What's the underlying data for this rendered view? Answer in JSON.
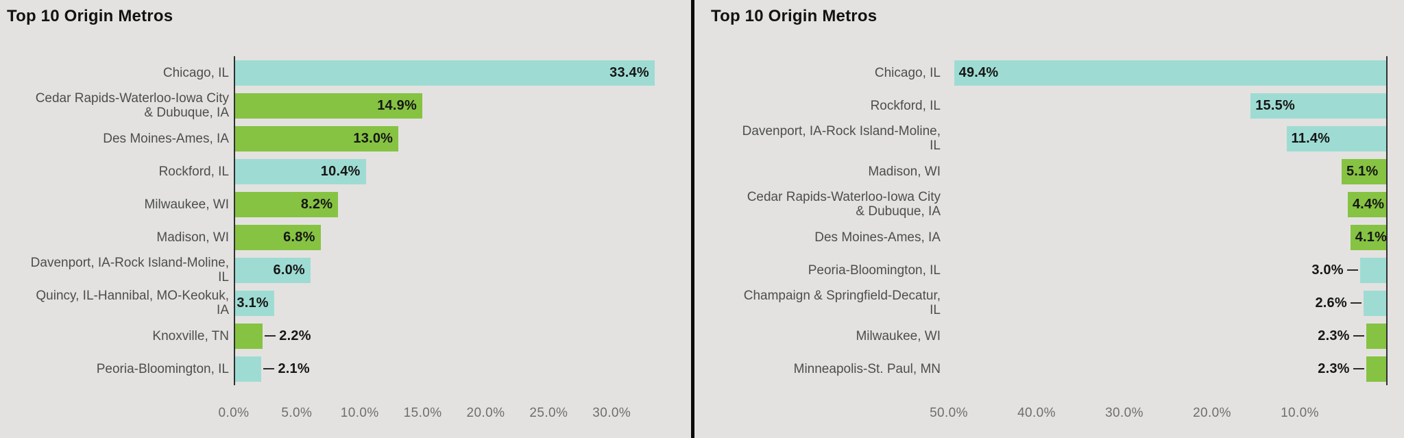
{
  "page": {
    "background": "#e3e2e0"
  },
  "colors": {
    "teal": "#9edcd3",
    "green": "#86c342",
    "divider": "#0b0b0b",
    "axis_line": "#2f2f2f",
    "category_text": "#4d4d4d",
    "tick_text": "#6e6e6e",
    "value_text": "#161616",
    "title_text": "#121212",
    "background": "#e3e2e0"
  },
  "chart_data": [
    {
      "type": "bar",
      "orientation": "horizontal",
      "mirrored": false,
      "title": "Top 10 Origin Metros",
      "categories": [
        "Chicago, IL",
        "Cedar Rapids-Waterloo-Iowa City\n& Dubuque, IA",
        "Des Moines-Ames, IA",
        "Rockford, IL",
        "Milwaukee, WI",
        "Madison, WI",
        "Davenport, IA-Rock Island-Moline,\nIL",
        "Quincy, IL-Hannibal, MO-Keokuk,\nIA",
        "Knoxville, TN",
        "Peoria-Bloomington, IL"
      ],
      "values": [
        33.4,
        14.9,
        13.0,
        10.4,
        8.2,
        6.8,
        6.0,
        3.1,
        2.2,
        2.1
      ],
      "value_labels": [
        "33.4%",
        "14.9%",
        "13.0%",
        "10.4%",
        "8.2%",
        "6.8%",
        "6.0%",
        "3.1%",
        "2.2%",
        "2.1%"
      ],
      "bar_colors": [
        "teal",
        "green",
        "green",
        "teal",
        "green",
        "green",
        "teal",
        "teal",
        "green",
        "teal"
      ],
      "label_inside": [
        true,
        true,
        true,
        true,
        true,
        true,
        true,
        true,
        false,
        false
      ],
      "axis_max": 36.3,
      "x_tick_values": [
        0,
        5,
        10,
        15,
        20,
        25,
        30
      ],
      "x_ticks": [
        "0.0%",
        "5.0%",
        "10.0%",
        "15.0%",
        "20.0%",
        "25.0%",
        "30.0%"
      ],
      "xlabel": "",
      "ylabel": "",
      "grid": false,
      "legend": "none",
      "value_axis_side": "left"
    },
    {
      "type": "bar",
      "orientation": "horizontal",
      "mirrored": true,
      "title": "Top 10 Origin Metros",
      "categories": [
        "Chicago, IL",
        "Rockford, IL",
        "Davenport, IA-Rock Island-Moline,\nIL",
        "Madison, WI",
        "Cedar Rapids-Waterloo-Iowa City\n& Dubuque, IA",
        "Des Moines-Ames, IA",
        "Peoria-Bloomington, IL",
        "Champaign & Springfield-Decatur,\nIL",
        "Milwaukee, WI",
        "Minneapolis-St. Paul, MN"
      ],
      "values": [
        49.4,
        15.5,
        11.4,
        5.1,
        4.4,
        4.1,
        3.0,
        2.6,
        2.3,
        2.3
      ],
      "value_labels": [
        "49.4%",
        "15.5%",
        "11.4%",
        "5.1%",
        "4.4%",
        "4.1%",
        "3.0%",
        "2.6%",
        "2.3%",
        "2.3%"
      ],
      "bar_colors": [
        "teal",
        "teal",
        "teal",
        "green",
        "green",
        "green",
        "teal",
        "teal",
        "green",
        "green"
      ],
      "label_inside": [
        true,
        true,
        true,
        true,
        true,
        true,
        false,
        false,
        false,
        false
      ],
      "axis_max": 50,
      "x_tick_values": [
        50,
        40,
        30,
        20,
        10
      ],
      "x_ticks": [
        "50.0%",
        "40.0%",
        "30.0%",
        "20.0%",
        "10.0%"
      ],
      "xlabel": "",
      "ylabel": "",
      "grid": false,
      "legend": "none",
      "value_axis_side": "right"
    }
  ]
}
